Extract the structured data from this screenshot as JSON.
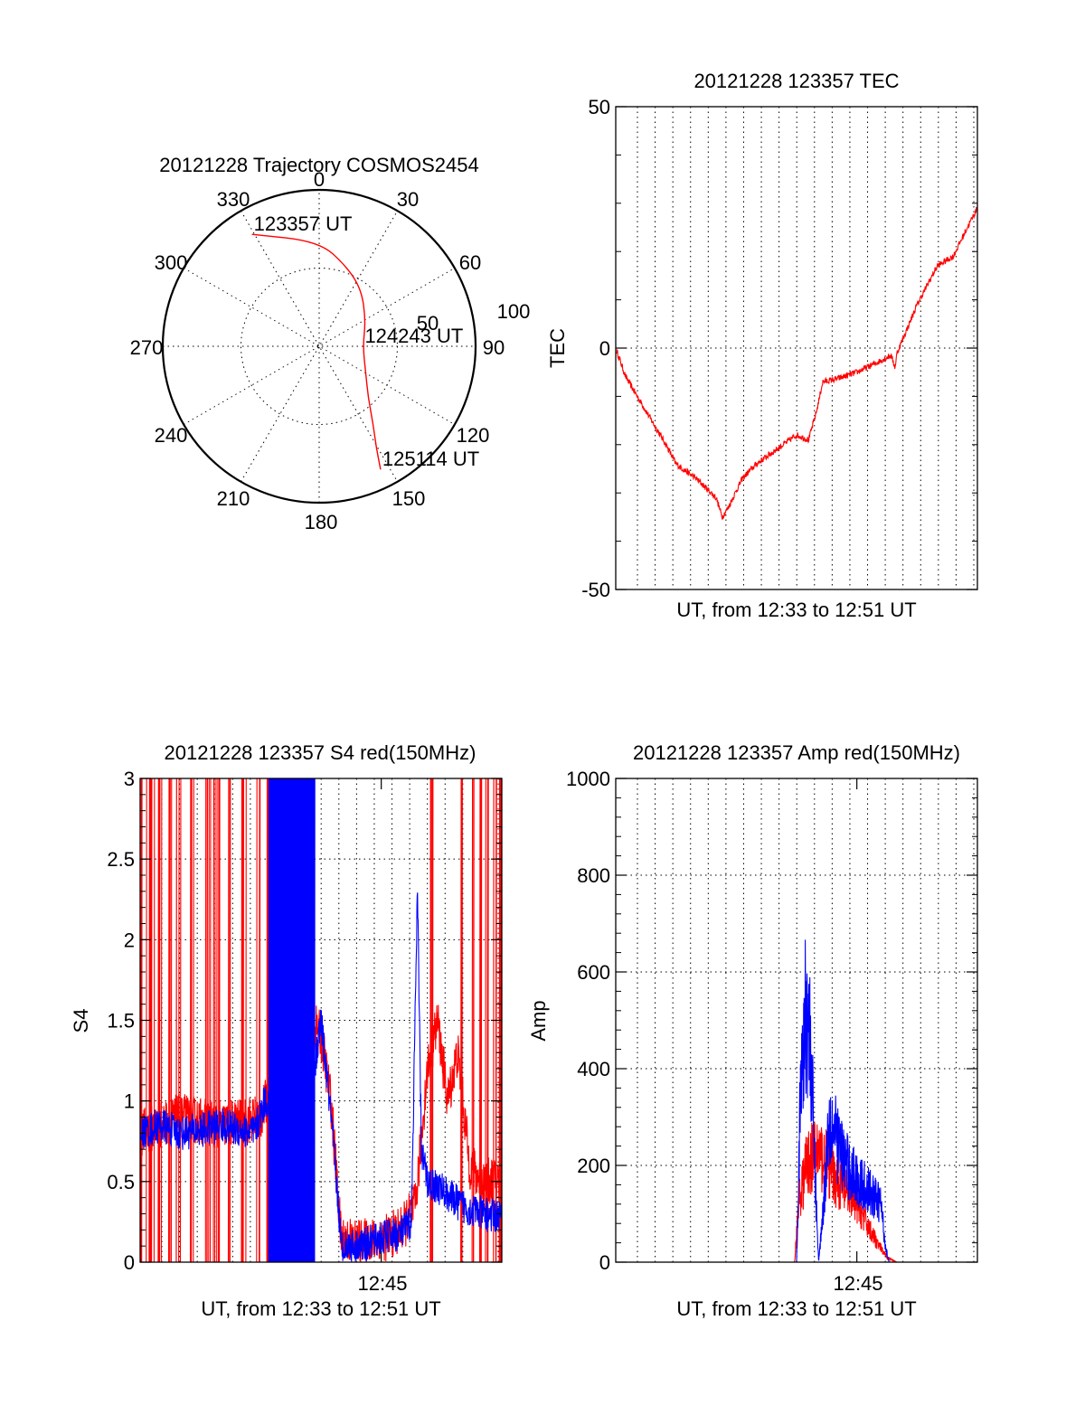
{
  "chart_data": [
    {
      "id": "trajectory",
      "type": "polar",
      "title": "20121228 Trajectory COSMOS2454",
      "angle_labels": [
        "0",
        "30",
        "60",
        "90",
        "120",
        "150",
        "180",
        "210",
        "240",
        "270",
        "300",
        "330"
      ],
      "radius_labels": [
        "50",
        "100"
      ],
      "rmax": 100,
      "grid": true,
      "track": {
        "color": "#ff0000",
        "points": [
          [
            -31.0,
            83.5
          ],
          [
            0,
            67
          ],
          [
            19,
            54
          ],
          [
            37,
            45
          ],
          [
            61,
            34
          ],
          [
            90,
            28
          ],
          [
            119,
            34
          ],
          [
            136,
            45
          ],
          [
            145,
            60
          ],
          [
            150.5,
            74
          ],
          [
            153.5,
            88
          ]
        ]
      },
      "annotations": [
        {
          "text": "123357 UT",
          "az": -31.0,
          "r": 83.5
        },
        {
          "text": "124243 UT",
          "az": 90,
          "r": 28
        },
        {
          "text": "125114 UT",
          "az": 153.5,
          "r": 88
        }
      ]
    },
    {
      "id": "tec",
      "type": "line",
      "title": "20121228 123357 TEC",
      "xlabel": "UT, from 12:33 to 12:51 UT",
      "ylabel": "TEC",
      "ylim": [
        -50,
        50
      ],
      "yticks": [
        "-50",
        "0",
        "50"
      ],
      "xlim_minutes": [
        0,
        18
      ],
      "grid": true,
      "series": [
        {
          "color": "#ff0000",
          "points": [
            [
              0,
              0
            ],
            [
              0.5,
              -6
            ],
            [
              1.5,
              -13
            ],
            [
              2.5,
              -20
            ],
            [
              3.0,
              -24
            ],
            [
              4.0,
              -27
            ],
            [
              4.5,
              -29
            ],
            [
              5.0,
              -31
            ],
            [
              5.3,
              -35
            ],
            [
              5.6,
              -33
            ],
            [
              6.3,
              -27
            ],
            [
              7.0,
              -24
            ],
            [
              8.0,
              -21
            ],
            [
              9.0,
              -18
            ],
            [
              9.6,
              -19
            ],
            [
              10.0,
              -13
            ],
            [
              10.3,
              -7
            ],
            [
              11.0,
              -6.4
            ],
            [
              12.0,
              -5
            ],
            [
              13.0,
              -3
            ],
            [
              13.7,
              -1.5
            ],
            [
              13.9,
              -4
            ],
            [
              14.0,
              -1
            ],
            [
              15.0,
              9
            ],
            [
              16.0,
              17
            ],
            [
              16.8,
              19
            ],
            [
              17.5,
              25
            ],
            [
              18.0,
              29
            ]
          ]
        }
      ]
    },
    {
      "id": "s4",
      "type": "line",
      "title": "20121228 123357 S4 red(150MHz)",
      "xlabel": "UT, from 12:33 to 12:51 UT",
      "ylabel": "S4",
      "ylim": [
        0,
        3
      ],
      "yticks": [
        "0",
        "0.5",
        "1",
        "1.5",
        "2",
        "2.5",
        "3"
      ],
      "xlim_minutes": [
        0,
        18
      ],
      "xticks": [
        {
          "label": "12:45",
          "minute": 12
        }
      ],
      "grid": true,
      "series": [
        {
          "color": "#ff0000",
          "base_points": [
            [
              0,
              0.8
            ],
            [
              2,
              0.9
            ],
            [
              4,
              0.85
            ],
            [
              6,
              0.9
            ],
            [
              8,
              1.6
            ],
            [
              9,
              1.4
            ],
            [
              9.5,
              1.0
            ],
            [
              10,
              0.15
            ],
            [
              11,
              0.12
            ],
            [
              12,
              0.14
            ],
            [
              13,
              0.2
            ],
            [
              13.7,
              0.35
            ],
            [
              14.3,
              1.2
            ],
            [
              14.8,
              1.5
            ],
            [
              15.3,
              1.0
            ],
            [
              15.8,
              1.3
            ],
            [
              16.4,
              0.6
            ],
            [
              17,
              0.5
            ],
            [
              18,
              0.5
            ]
          ],
          "spikes_minutes": [
            0.1,
            0.4,
            0.6,
            1.0,
            1.5,
            1.9,
            2.6,
            3.3,
            3.6,
            3.9,
            4.5,
            5.0,
            5.2,
            5.9,
            6.3,
            6.6,
            7.6,
            7.9,
            8.2,
            8.5,
            14.5,
            16.0,
            16.5,
            17.0,
            17.3,
            17.6,
            17.9
          ]
        },
        {
          "color": "#0000ff",
          "base_points": [
            [
              0,
              0.8
            ],
            [
              1,
              0.85
            ],
            [
              2,
              0.8
            ],
            [
              3,
              0.82
            ],
            [
              4,
              0.85
            ],
            [
              5,
              0.82
            ],
            [
              5.7,
              0.8
            ],
            [
              6.2,
              1.0
            ],
            [
              8.5,
              1.0
            ],
            [
              9.0,
              1.5
            ],
            [
              9.5,
              0.9
            ],
            [
              9.9,
              0.3
            ],
            [
              10,
              0.1
            ],
            [
              11,
              0.1
            ],
            [
              12,
              0.15
            ],
            [
              13,
              0.18
            ],
            [
              13.5,
              0.25
            ],
            [
              13.8,
              2.3
            ],
            [
              14.0,
              0.7
            ],
            [
              14.3,
              0.5
            ],
            [
              15,
              0.45
            ],
            [
              16,
              0.35
            ],
            [
              17,
              0.3
            ],
            [
              18,
              0.28
            ]
          ],
          "dense_range_minutes": [
            6.4,
            8.7
          ]
        }
      ]
    },
    {
      "id": "amp",
      "type": "line",
      "title": "20121228 123357 Amp red(150MHz)",
      "xlabel": "UT, from 12:33 to 12:51 UT",
      "ylabel": "Amp",
      "ylim": [
        0,
        1000
      ],
      "yticks": [
        "0",
        "200",
        "400",
        "600",
        "800",
        "1000"
      ],
      "xlim_minutes": [
        0,
        18
      ],
      "xticks": [
        {
          "label": "12:45",
          "minute": 12
        }
      ],
      "grid": true,
      "series": [
        {
          "color": "#ff0000",
          "points": [
            [
              0,
              0
            ],
            [
              8.9,
              0
            ],
            [
              9.1,
              120
            ],
            [
              9.5,
              200
            ],
            [
              10.0,
              230
            ],
            [
              10.4,
              210
            ],
            [
              11.0,
              170
            ],
            [
              11.5,
              140
            ],
            [
              12.0,
              120
            ],
            [
              12.5,
              80
            ],
            [
              13.0,
              40
            ],
            [
              13.5,
              10
            ],
            [
              14.0,
              0
            ],
            [
              18.0,
              0
            ]
          ]
        },
        {
          "color": "#0000ff",
          "points": [
            [
              0,
              0
            ],
            [
              9.0,
              0
            ],
            [
              9.2,
              350
            ],
            [
              9.5,
              540
            ],
            [
              9.7,
              450
            ],
            [
              9.9,
              200
            ],
            [
              10.1,
              0
            ],
            [
              10.4,
              150
            ],
            [
              10.6,
              300
            ],
            [
              11.0,
              250
            ],
            [
              11.5,
              200
            ],
            [
              12.0,
              170
            ],
            [
              12.5,
              150
            ],
            [
              13.2,
              120
            ],
            [
              13.4,
              40
            ],
            [
              13.6,
              0
            ],
            [
              18.0,
              0
            ]
          ]
        }
      ]
    }
  ]
}
